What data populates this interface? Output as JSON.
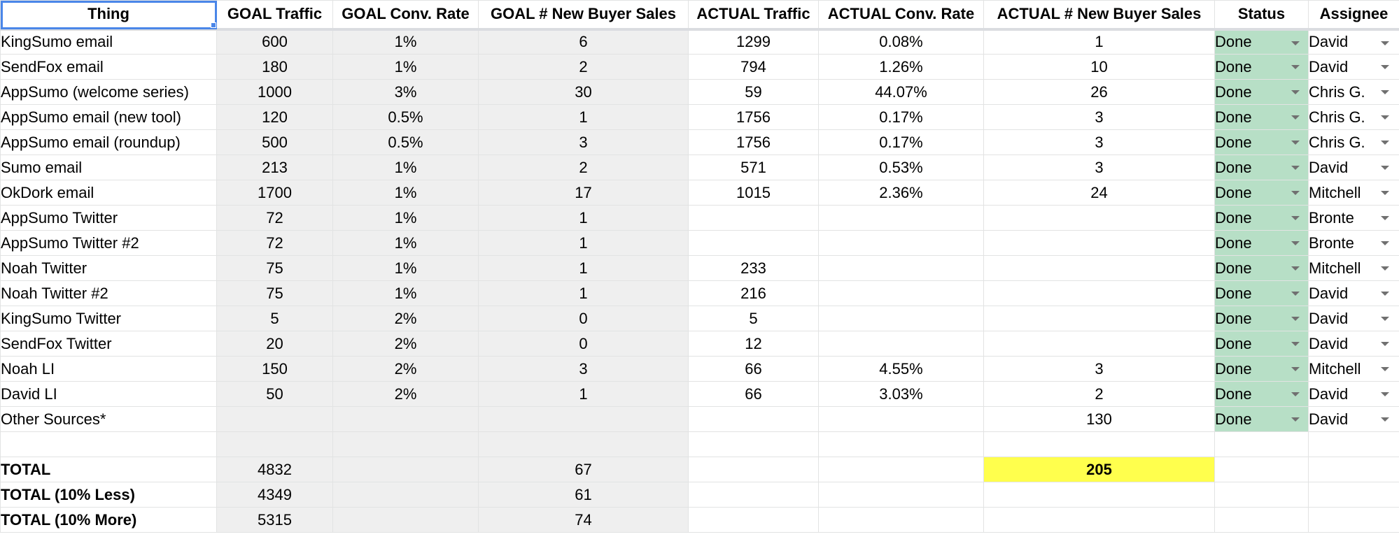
{
  "columns": [
    "Thing",
    "GOAL Traffic",
    "GOAL Conv. Rate",
    "GOAL # New Buyer Sales",
    "ACTUAL Traffic",
    "ACTUAL Conv. Rate",
    "ACTUAL # New Buyer Sales",
    "Status",
    "Assignee"
  ],
  "rows": [
    {
      "thing": "KingSumo email",
      "goal_traffic": "600",
      "goal_conv": "1%",
      "goal_sales": "6",
      "actual_traffic": "1299",
      "actual_conv": "0.08%",
      "actual_sales": "1",
      "status": "Done",
      "assignee": "David"
    },
    {
      "thing": "SendFox email",
      "goal_traffic": "180",
      "goal_conv": "1%",
      "goal_sales": "2",
      "actual_traffic": "794",
      "actual_conv": "1.26%",
      "actual_sales": "10",
      "status": "Done",
      "assignee": "David"
    },
    {
      "thing": "AppSumo (welcome series)",
      "goal_traffic": "1000",
      "goal_conv": "3%",
      "goal_sales": "30",
      "actual_traffic": "59",
      "actual_conv": "44.07%",
      "actual_sales": "26",
      "status": "Done",
      "assignee": "Chris G."
    },
    {
      "thing": "AppSumo email (new tool)",
      "goal_traffic": "120",
      "goal_conv": "0.5%",
      "goal_sales": "1",
      "actual_traffic": "1756",
      "actual_conv": "0.17%",
      "actual_sales": "3",
      "status": "Done",
      "assignee": "Chris G."
    },
    {
      "thing": "AppSumo email (roundup)",
      "goal_traffic": "500",
      "goal_conv": "0.5%",
      "goal_sales": "3",
      "actual_traffic": "1756",
      "actual_conv": "0.17%",
      "actual_sales": "3",
      "status": "Done",
      "assignee": "Chris G."
    },
    {
      "thing": "Sumo email",
      "goal_traffic": "213",
      "goal_conv": "1%",
      "goal_sales": "2",
      "actual_traffic": "571",
      "actual_conv": "0.53%",
      "actual_sales": "3",
      "status": "Done",
      "assignee": "David"
    },
    {
      "thing": "OkDork email",
      "goal_traffic": "1700",
      "goal_conv": "1%",
      "goal_sales": "17",
      "actual_traffic": "1015",
      "actual_conv": "2.36%",
      "actual_sales": "24",
      "status": "Done",
      "assignee": "Mitchell"
    },
    {
      "thing": "AppSumo Twitter",
      "goal_traffic": "72",
      "goal_conv": "1%",
      "goal_sales": "1",
      "actual_traffic": "",
      "actual_conv": "",
      "actual_sales": "",
      "status": "Done",
      "assignee": "Bronte"
    },
    {
      "thing": "AppSumo Twitter #2",
      "goal_traffic": "72",
      "goal_conv": "1%",
      "goal_sales": "1",
      "actual_traffic": "",
      "actual_conv": "",
      "actual_sales": "",
      "status": "Done",
      "assignee": "Bronte"
    },
    {
      "thing": "Noah Twitter",
      "goal_traffic": "75",
      "goal_conv": "1%",
      "goal_sales": "1",
      "actual_traffic": "233",
      "actual_conv": "",
      "actual_sales": "",
      "status": "Done",
      "assignee": "Mitchell"
    },
    {
      "thing": "Noah Twitter #2",
      "goal_traffic": "75",
      "goal_conv": "1%",
      "goal_sales": "1",
      "actual_traffic": "216",
      "actual_conv": "",
      "actual_sales": "",
      "status": "Done",
      "assignee": "David"
    },
    {
      "thing": "KingSumo Twitter",
      "goal_traffic": "5",
      "goal_conv": "2%",
      "goal_sales": "0",
      "actual_traffic": "5",
      "actual_conv": "",
      "actual_sales": "",
      "status": "Done",
      "assignee": "David"
    },
    {
      "thing": "SendFox Twitter",
      "goal_traffic": "20",
      "goal_conv": "2%",
      "goal_sales": "0",
      "actual_traffic": "12",
      "actual_conv": "",
      "actual_sales": "",
      "status": "Done",
      "assignee": "David"
    },
    {
      "thing": "Noah LI",
      "goal_traffic": "150",
      "goal_conv": "2%",
      "goal_sales": "3",
      "actual_traffic": "66",
      "actual_conv": "4.55%",
      "actual_sales": "3",
      "status": "Done",
      "assignee": "Mitchell"
    },
    {
      "thing": "David LI",
      "goal_traffic": "50",
      "goal_conv": "2%",
      "goal_sales": "1",
      "actual_traffic": "66",
      "actual_conv": "3.03%",
      "actual_sales": "2",
      "status": "Done",
      "assignee": "David"
    },
    {
      "thing": "Other Sources*",
      "goal_traffic": "",
      "goal_conv": "",
      "goal_sales": "",
      "actual_traffic": "",
      "actual_conv": "",
      "actual_sales": "130",
      "status": "Done",
      "assignee": "David"
    }
  ],
  "totals": [
    {
      "label": "TOTAL",
      "goal_traffic": "4832",
      "goal_sales": "67",
      "actual_sales": "205"
    },
    {
      "label": "TOTAL (10% Less)",
      "goal_traffic": "4349",
      "goal_sales": "61",
      "actual_sales": ""
    },
    {
      "label": "TOTAL (10% More)",
      "goal_traffic": "5315",
      "goal_sales": "74",
      "actual_sales": ""
    }
  ],
  "colors": {
    "goal_fill": "#efefef",
    "status_fill": "#b7dfc6",
    "highlight_fill": "#ffff4d",
    "selection": "#4a86e8"
  },
  "icons": {
    "dropdown": "dropdown-arrow-icon"
  }
}
